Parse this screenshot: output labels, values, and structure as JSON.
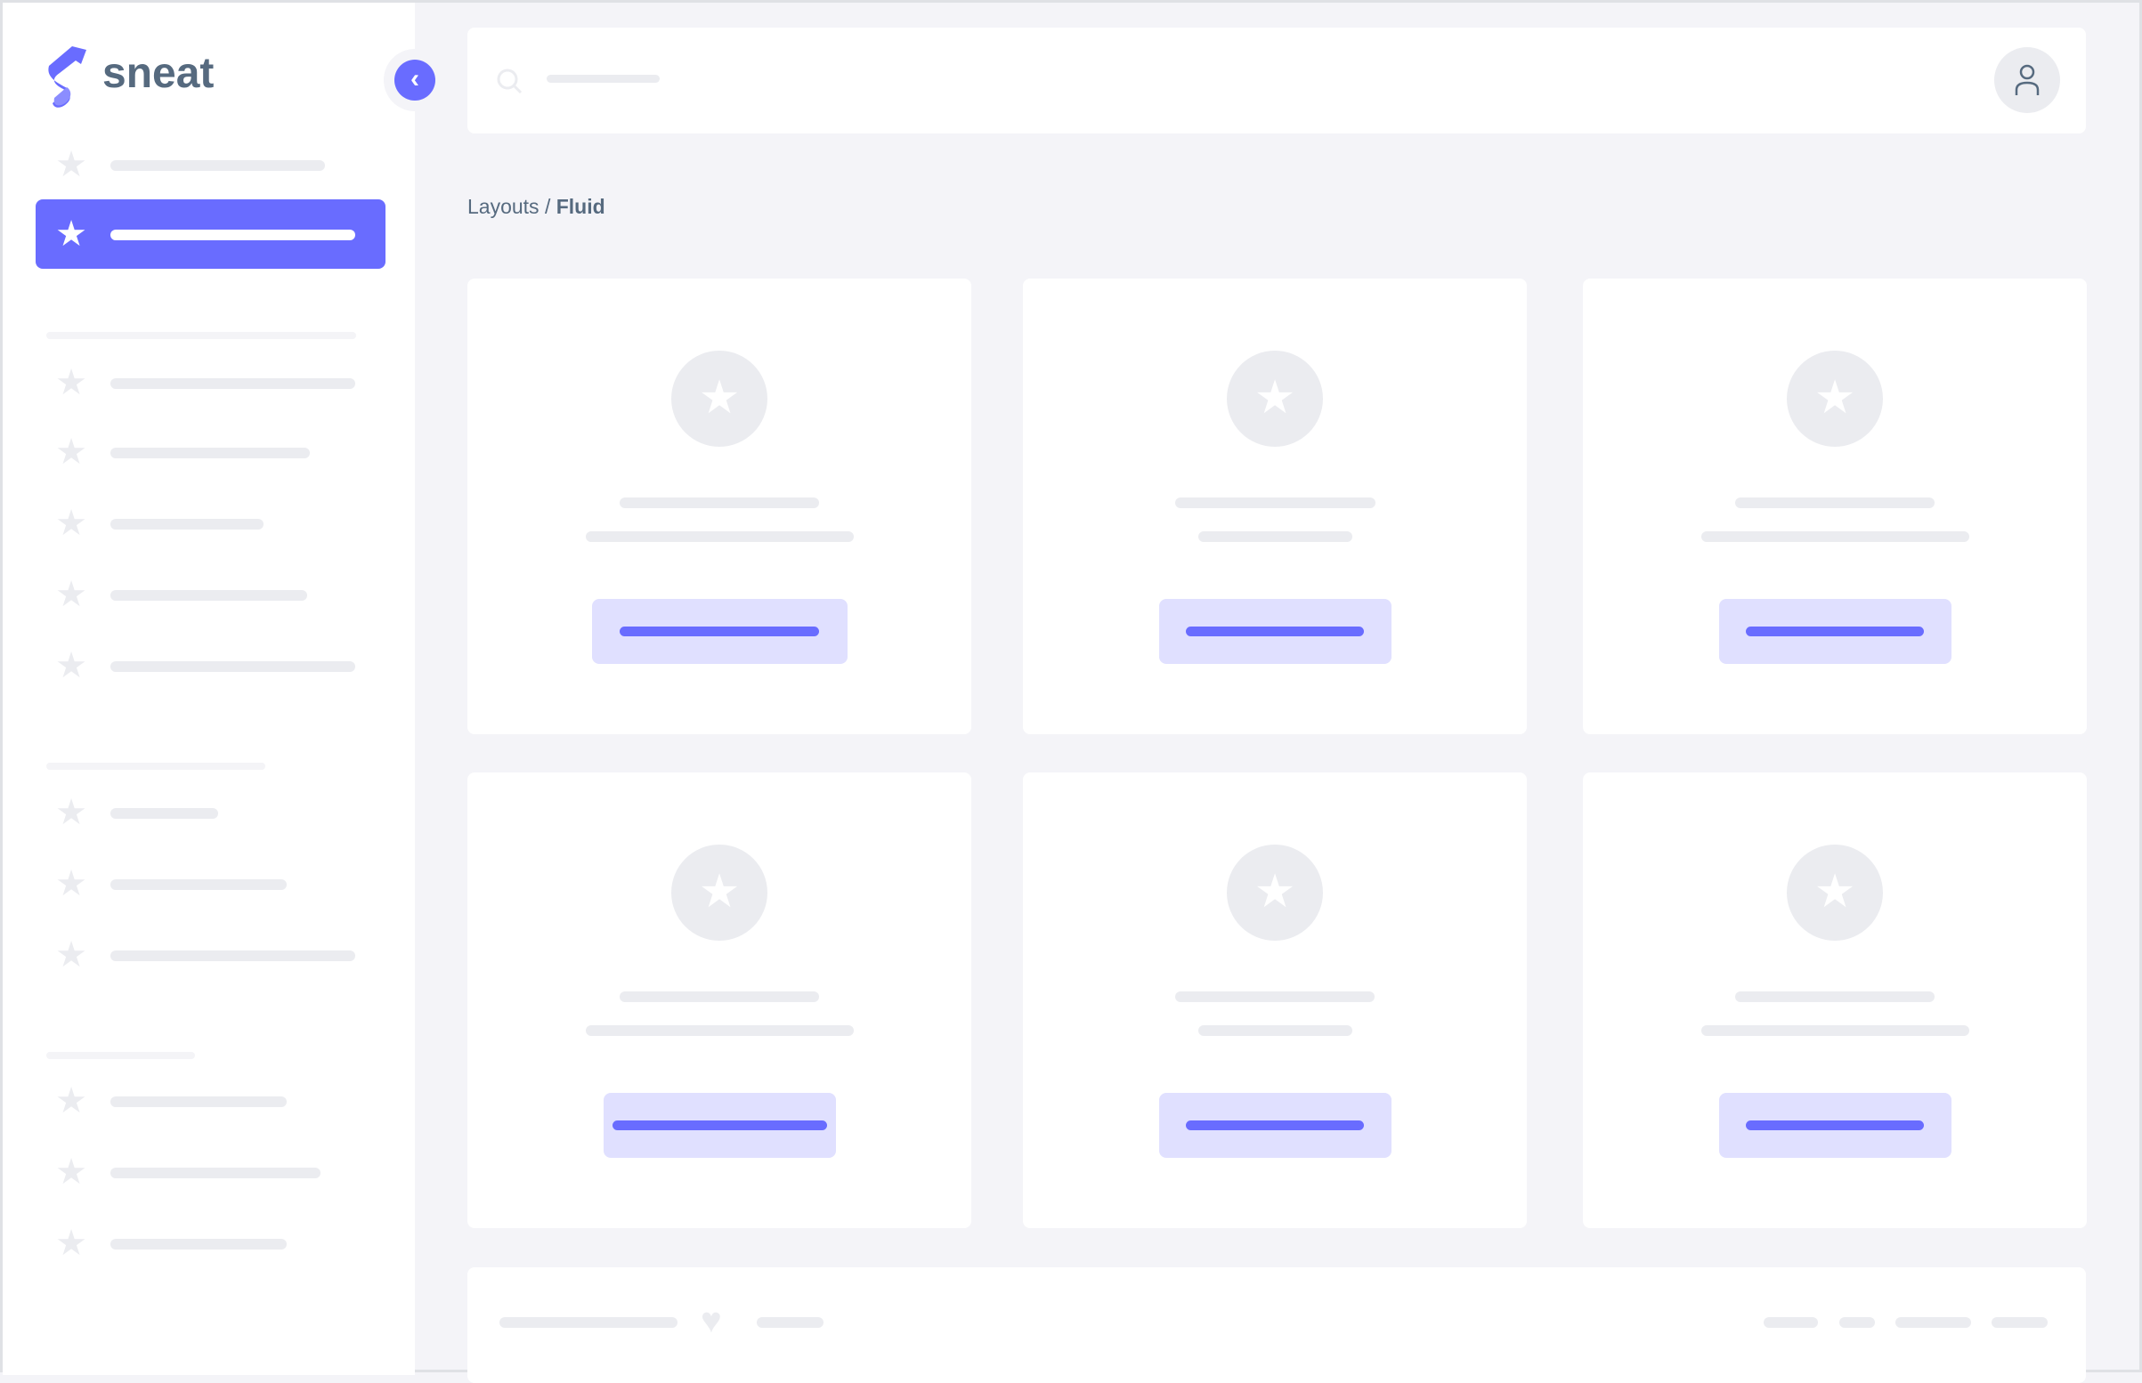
{
  "brand": {
    "name": "sneat",
    "accent": "#696cff",
    "text_color": "#566a7f"
  },
  "breadcrumb": {
    "parent": "Layouts",
    "separator": "/",
    "current": "Fluid"
  },
  "icons": {
    "menu_item": "star-icon",
    "collapse": "chevron-left-icon",
    "search": "search-icon",
    "user": "user-icon",
    "card": "star-icon",
    "footer": "heart-icon"
  },
  "colors": {
    "background": "#f4f4f8",
    "placeholder": "#ebecf0",
    "button_bg": "#e0e0ff"
  }
}
